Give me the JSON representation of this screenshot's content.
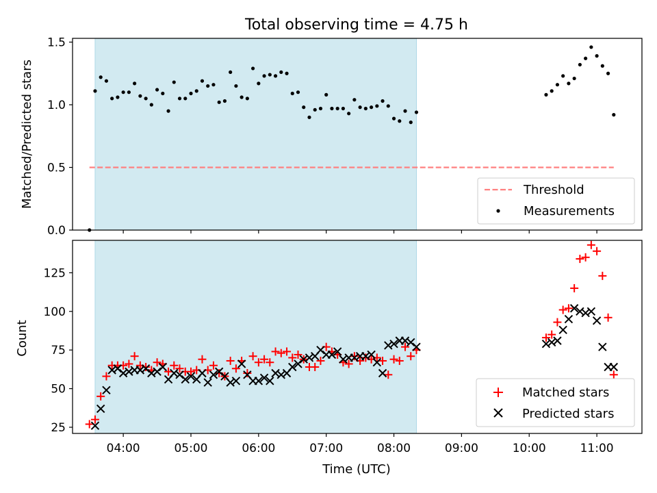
{
  "figure": {
    "title": "Total observing time = 4.75 h",
    "observing_window": {
      "start": "03:35",
      "end": "08:20",
      "color": "#add8e6"
    }
  },
  "chart_data": [
    {
      "type": "scatter",
      "ylabel": "Matched/Predicted stars",
      "xlim": [
        "03:15",
        "11:40"
      ],
      "ylim": [
        0,
        1.53
      ],
      "yticks": [
        0.0,
        0.5,
        1.0,
        1.5
      ],
      "ytick_labels": [
        "0.0",
        "0.5",
        "1.0",
        "1.5"
      ],
      "legend_position": "lower-right",
      "threshold": {
        "name": "Threshold",
        "value": 0.5,
        "x_range": [
          "03:30",
          "11:15"
        ],
        "color": "#ff7f7f",
        "style": "dashed"
      },
      "series": [
        {
          "name": "Measurements",
          "marker": "dot",
          "color": "#000000",
          "x": [
            "03:30",
            "03:35",
            "03:40",
            "03:45",
            "03:50",
            "03:55",
            "04:00",
            "04:05",
            "04:10",
            "04:15",
            "04:20",
            "04:25",
            "04:30",
            "04:35",
            "04:40",
            "04:45",
            "04:50",
            "04:55",
            "05:00",
            "05:05",
            "05:10",
            "05:15",
            "05:20",
            "05:25",
            "05:30",
            "05:35",
            "05:40",
            "05:45",
            "05:50",
            "05:55",
            "06:00",
            "06:05",
            "06:10",
            "06:15",
            "06:20",
            "06:25",
            "06:30",
            "06:35",
            "06:40",
            "06:45",
            "06:50",
            "06:55",
            "07:00",
            "07:05",
            "07:10",
            "07:15",
            "07:20",
            "07:25",
            "07:30",
            "07:35",
            "07:40",
            "07:45",
            "07:50",
            "07:55",
            "08:00",
            "08:05",
            "08:10",
            "08:15",
            "08:20",
            "10:15",
            "10:20",
            "10:25",
            "10:30",
            "10:35",
            "10:40",
            "10:45",
            "10:50",
            "10:55",
            "11:00",
            "11:05",
            "11:10",
            "11:15"
          ],
          "y": [
            0.0,
            1.11,
            1.22,
            1.19,
            1.05,
            1.06,
            1.1,
            1.1,
            1.17,
            1.07,
            1.05,
            1.0,
            1.12,
            1.09,
            0.95,
            1.18,
            1.05,
            1.05,
            1.09,
            1.11,
            1.19,
            1.15,
            1.16,
            1.02,
            1.03,
            1.26,
            1.15,
            1.06,
            1.05,
            1.29,
            1.17,
            1.23,
            1.24,
            1.23,
            1.26,
            1.25,
            1.09,
            1.1,
            0.98,
            0.9,
            0.96,
            0.97,
            1.08,
            0.97,
            0.97,
            0.97,
            0.93,
            1.04,
            0.98,
            0.97,
            0.98,
            0.99,
            1.03,
            0.99,
            0.89,
            0.87,
            0.95,
            0.86,
            0.94,
            1.08,
            1.11,
            1.16,
            1.23,
            1.17,
            1.21,
            1.32,
            1.37,
            1.46,
            1.39,
            1.31,
            1.25,
            0.92
          ]
        }
      ]
    },
    {
      "type": "scatter",
      "xlabel": "Time (UTC)",
      "ylabel": "Count",
      "xlim": [
        "03:15",
        "11:40"
      ],
      "ylim": [
        21,
        146
      ],
      "xticks": [
        "04:00",
        "05:00",
        "06:00",
        "07:00",
        "08:00",
        "09:00",
        "10:00",
        "11:00"
      ],
      "yticks": [
        25,
        50,
        75,
        100,
        125
      ],
      "legend_position": "lower-right",
      "series": [
        {
          "name": "Matched stars",
          "marker": "plus",
          "color": "#ff0000",
          "x": [
            "03:30",
            "03:35",
            "03:40",
            "03:45",
            "03:50",
            "03:55",
            "04:00",
            "04:05",
            "04:10",
            "04:15",
            "04:20",
            "04:25",
            "04:30",
            "04:35",
            "04:40",
            "04:45",
            "04:50",
            "04:55",
            "05:00",
            "05:05",
            "05:10",
            "05:15",
            "05:20",
            "05:25",
            "05:30",
            "05:35",
            "05:40",
            "05:45",
            "05:50",
            "05:55",
            "06:00",
            "06:05",
            "06:10",
            "06:15",
            "06:20",
            "06:25",
            "06:30",
            "06:35",
            "06:40",
            "06:45",
            "06:50",
            "06:55",
            "07:00",
            "07:05",
            "07:10",
            "07:15",
            "07:20",
            "07:25",
            "07:30",
            "07:35",
            "07:40",
            "07:45",
            "07:50",
            "07:55",
            "08:00",
            "08:05",
            "08:10",
            "08:15",
            "08:20",
            "10:15",
            "10:20",
            "10:25",
            "10:30",
            "10:35",
            "10:40",
            "10:45",
            "10:50",
            "10:55",
            "11:00",
            "11:05",
            "11:10",
            "11:15"
          ],
          "y": [
            27,
            30,
            45,
            58,
            65,
            65,
            65,
            66,
            71,
            65,
            64,
            62,
            67,
            66,
            61,
            65,
            63,
            61,
            61,
            62,
            69,
            62,
            65,
            60,
            58,
            68,
            63,
            68,
            60,
            71,
            67,
            69,
            67,
            74,
            73,
            74,
            70,
            72,
            69,
            64,
            64,
            68,
            77,
            74,
            72,
            67,
            66,
            71,
            68,
            70,
            69,
            70,
            68,
            59,
            69,
            68,
            77,
            71,
            75,
            83,
            85,
            93,
            101,
            102,
            115,
            134,
            135,
            143,
            139,
            123,
            96,
            59
          ]
        },
        {
          "name": "Predicted stars",
          "marker": "x",
          "color": "#000000",
          "x": [
            "03:35",
            "03:40",
            "03:45",
            "03:50",
            "03:55",
            "04:00",
            "04:05",
            "04:10",
            "04:15",
            "04:20",
            "04:25",
            "04:30",
            "04:35",
            "04:40",
            "04:45",
            "04:50",
            "04:55",
            "05:00",
            "05:05",
            "05:10",
            "05:15",
            "05:20",
            "05:25",
            "05:30",
            "05:35",
            "05:40",
            "05:45",
            "05:50",
            "05:55",
            "06:00",
            "06:05",
            "06:10",
            "06:15",
            "06:20",
            "06:25",
            "06:30",
            "06:35",
            "06:40",
            "06:45",
            "06:50",
            "06:55",
            "07:00",
            "07:05",
            "07:10",
            "07:15",
            "07:20",
            "07:25",
            "07:30",
            "07:35",
            "07:40",
            "07:45",
            "07:50",
            "07:55",
            "08:00",
            "08:05",
            "08:10",
            "08:15",
            "08:20",
            "10:15",
            "10:20",
            "10:25",
            "10:30",
            "10:35",
            "10:40",
            "10:45",
            "10:50",
            "10:55",
            "11:00",
            "11:05",
            "11:10",
            "11:15"
          ],
          "y": [
            26,
            37,
            49,
            62,
            63,
            60,
            61,
            62,
            62,
            63,
            60,
            61,
            64,
            56,
            60,
            59,
            56,
            58,
            56,
            60,
            54,
            59,
            61,
            58,
            54,
            55,
            66,
            59,
            55,
            55,
            57,
            55,
            60,
            59,
            60,
            64,
            66,
            69,
            70,
            71,
            75,
            72,
            72,
            74,
            69,
            70,
            70,
            71,
            71,
            72,
            67,
            60,
            78,
            79,
            81,
            81,
            80,
            77,
            79,
            80,
            81,
            88,
            95,
            102,
            100,
            99,
            100,
            94,
            77,
            64,
            64
          ]
        }
      ]
    }
  ]
}
